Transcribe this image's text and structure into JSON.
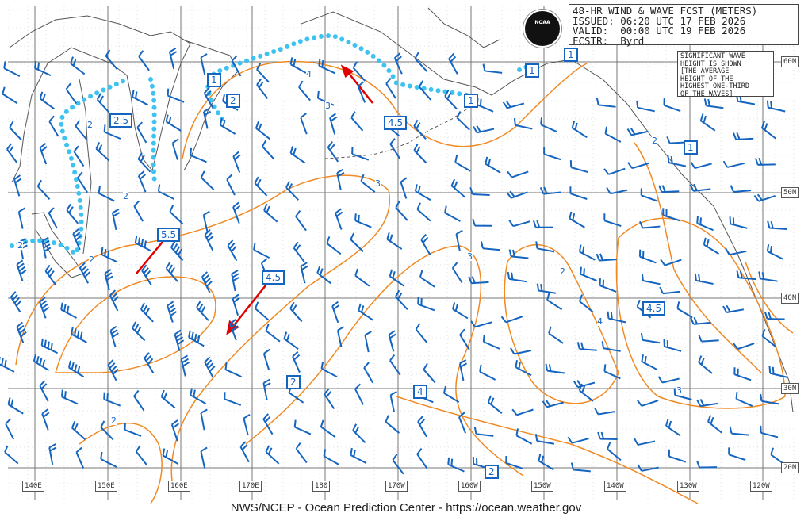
{
  "header": {
    "title": "48-HR WIND & WAVE FCST (METERS)",
    "issued": "ISSUED: 06:20 UTC 17 FEB 2026",
    "valid": "VALID:  00:00 UTC 19 FEB 2026",
    "forecaster": "FCSTR:  Byrd"
  },
  "logo_text": "NOAA",
  "legend_note": "SIGNIFICANT WAVE\nHEIGHT IS SHOWN\n[THE AVERAGE\nHEIGHT OF THE\nHIGHEST ONE-THIRD\nOF THE WAVES]",
  "longitude_labels": [
    "140E",
    "150E",
    "160E",
    "170E",
    "180",
    "170W",
    "160W",
    "150W",
    "140W",
    "130W",
    "120W"
  ],
  "latitude_labels": [
    "60N",
    "50N",
    "40N",
    "30N",
    "20N"
  ],
  "wave_height_boxes": [
    "1",
    "1",
    "1",
    "2",
    "2.5",
    "1",
    "4.5",
    "1",
    "5.5",
    "4.5",
    "4.5",
    "2",
    "4",
    "2"
  ],
  "contour_labels": [
    "2",
    "2",
    "2",
    "2",
    "3",
    "4",
    "3",
    "2",
    "3",
    "4",
    "2",
    "3",
    "2"
  ],
  "colors": {
    "wind_barb": "#1565c0",
    "wave_contour": "#f08a24",
    "ice_edge": "#3ec3f0",
    "storm_track": "#e00000",
    "coastline": "#555555"
  },
  "credit": "NWS/NCEP - Ocean Prediction Center - https://ocean.weather.gov"
}
